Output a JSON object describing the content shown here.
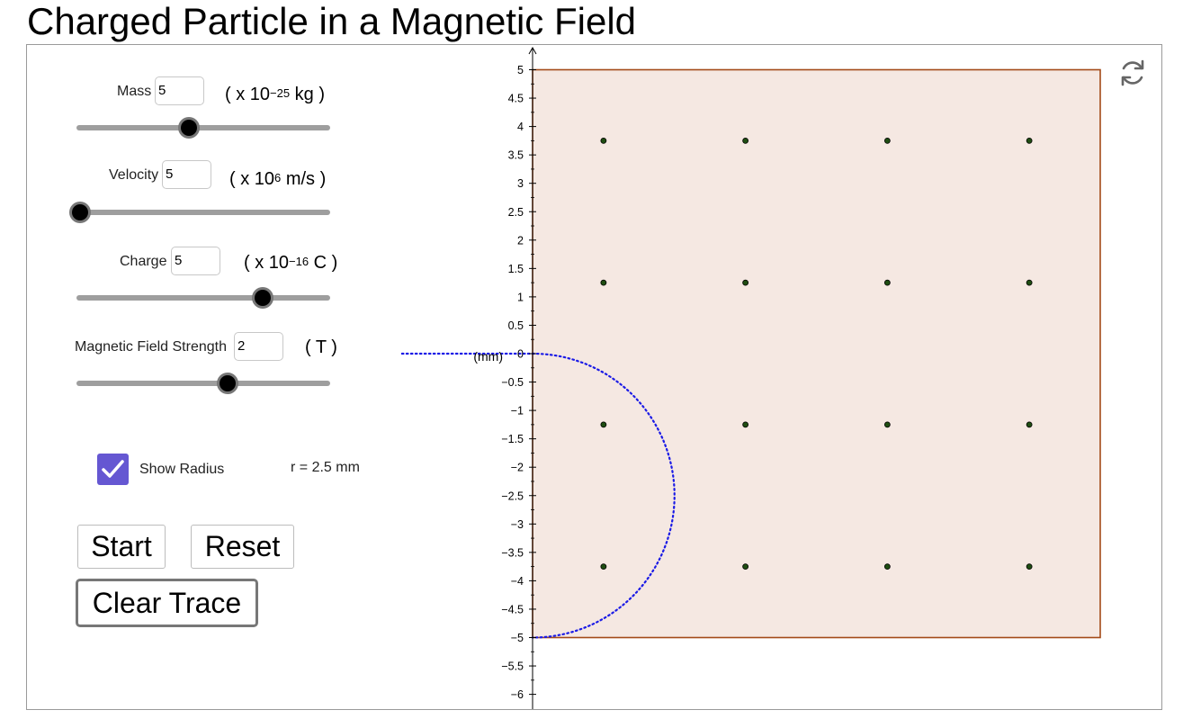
{
  "title": "Charged Particle in a Magnetic Field",
  "controls": {
    "mass": {
      "label": "Mass",
      "value": "5",
      "unit_pre": "( x 10",
      "unit_sup": "−25",
      "unit_post": " kg )",
      "level": 0.44
    },
    "velocity": {
      "label": "Velocity",
      "value": "5",
      "unit_pre": "( x 10",
      "unit_sup": "6",
      "unit_post": " m/s )",
      "level": 0.0
    },
    "charge": {
      "label": "Charge",
      "value": "5",
      "unit_pre": "( x 10",
      "unit_sup": "−16",
      "unit_post": " C )",
      "level": 0.74
    },
    "field": {
      "label": "Magnetic Field Strength",
      "value": "2",
      "unit_pre": "( T )",
      "unit_sup": "",
      "unit_post": "",
      "level": 0.6
    }
  },
  "show_radius": {
    "label": "Show Radius",
    "checked": true,
    "readout": "r = 2.5 mm"
  },
  "buttons": {
    "start": "Start",
    "reset": "Reset",
    "clear": "Clear Trace"
  },
  "graph": {
    "axis_unit_label": "(mm)",
    "y_ticks": [
      "5",
      "4.5",
      "4",
      "3.5",
      "3",
      "2.5",
      "2",
      "1.5",
      "1",
      "0.5",
      "0",
      "−0.5",
      "−1",
      "−1.5",
      "−2",
      "−2.5",
      "−3",
      "−3.5",
      "−4",
      "−4.5",
      "−5",
      "−5.5",
      "−6"
    ],
    "field_region": {
      "x_min": 0,
      "x_max": 10,
      "y_min": -5,
      "y_max": 5
    },
    "field_dots": [
      [
        1.25,
        3.75
      ],
      [
        3.75,
        3.75
      ],
      [
        6.25,
        3.75
      ],
      [
        8.75,
        3.75
      ],
      [
        1.25,
        1.25
      ],
      [
        3.75,
        1.25
      ],
      [
        6.25,
        1.25
      ],
      [
        8.75,
        1.25
      ],
      [
        1.25,
        -1.25
      ],
      [
        3.75,
        -1.25
      ],
      [
        6.25,
        -1.25
      ],
      [
        8.75,
        -1.25
      ],
      [
        1.25,
        -3.75
      ],
      [
        3.75,
        -3.75
      ],
      [
        6.25,
        -3.75
      ],
      [
        8.75,
        -3.75
      ]
    ],
    "path": {
      "entry_x_start": -2.3,
      "center": [
        0,
        -2.5
      ],
      "radius": 2.5
    },
    "colors": {
      "region_fill": "#f5e8e2",
      "region_stroke": "#a34a18",
      "trace": "#1a1ae6",
      "dot_fill": "#1f4d12",
      "accent": "#6557d2"
    }
  }
}
